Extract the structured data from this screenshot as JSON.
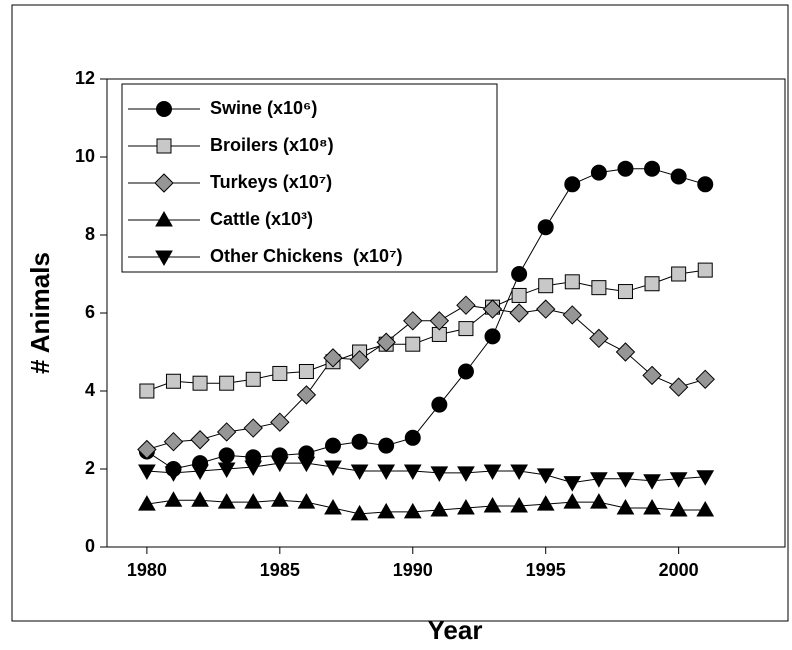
{
  "chart_data": {
    "type": "line",
    "x_label": "Year",
    "y_label": "# Animals",
    "x": [
      1980,
      1981,
      1982,
      1983,
      1984,
      1985,
      1986,
      1987,
      1988,
      1989,
      1990,
      1991,
      1992,
      1993,
      1994,
      1995,
      1996,
      1997,
      1998,
      1999,
      2000,
      2001
    ],
    "series": [
      {
        "name": "Swine (x10⁶)",
        "color": "#000000",
        "marker": "circle",
        "values": [
          2.45,
          2.0,
          2.15,
          2.35,
          2.3,
          2.35,
          2.4,
          2.6,
          2.7,
          2.6,
          2.8,
          3.65,
          4.5,
          5.4,
          7.0,
          8.2,
          9.3,
          9.6,
          9.7,
          9.7,
          9.5,
          9.3
        ]
      },
      {
        "name": "Broilers (x10⁸)",
        "color": "#c8c8c8",
        "marker": "square",
        "values": [
          4.0,
          4.25,
          4.2,
          4.2,
          4.3,
          4.45,
          4.5,
          4.75,
          5.0,
          5.2,
          5.2,
          5.45,
          5.6,
          6.15,
          6.45,
          6.7,
          6.8,
          6.65,
          6.55,
          6.75,
          7.0,
          7.1
        ]
      },
      {
        "name": "Turkeys (x10⁷)",
        "color": "#969696",
        "marker": "diamond",
        "values": [
          2.5,
          2.7,
          2.75,
          2.95,
          3.05,
          3.2,
          3.9,
          4.85,
          4.8,
          5.25,
          5.8,
          5.8,
          6.2,
          6.1,
          6.0,
          6.1,
          5.95,
          5.35,
          5.0,
          4.4,
          4.1,
          4.3
        ]
      },
      {
        "name": "Cattle (x10³)",
        "color": "#000000",
        "marker": "triangle-up",
        "values": [
          1.1,
          1.2,
          1.2,
          1.15,
          1.15,
          1.2,
          1.15,
          1.0,
          0.85,
          0.9,
          0.9,
          0.95,
          1.0,
          1.05,
          1.05,
          1.1,
          1.15,
          1.15,
          1.0,
          1.0,
          0.95,
          0.95
        ]
      },
      {
        "name": "Other Chickens  (x10⁷)",
        "color": "#000000",
        "marker": "triangle-down",
        "values": [
          1.95,
          1.9,
          1.95,
          2.0,
          2.05,
          2.15,
          2.15,
          2.05,
          1.95,
          1.95,
          1.95,
          1.9,
          1.9,
          1.95,
          1.95,
          1.85,
          1.65,
          1.75,
          1.75,
          1.7,
          1.75,
          1.8
        ]
      }
    ],
    "xlim": [
      1978.5,
      2004
    ],
    "xticks": [
      1980,
      1985,
      1990,
      1995,
      2000
    ],
    "ylim": [
      0,
      12
    ],
    "yticks": [
      0,
      2,
      4,
      6,
      8,
      10,
      12
    ],
    "legend": "upper-left"
  }
}
